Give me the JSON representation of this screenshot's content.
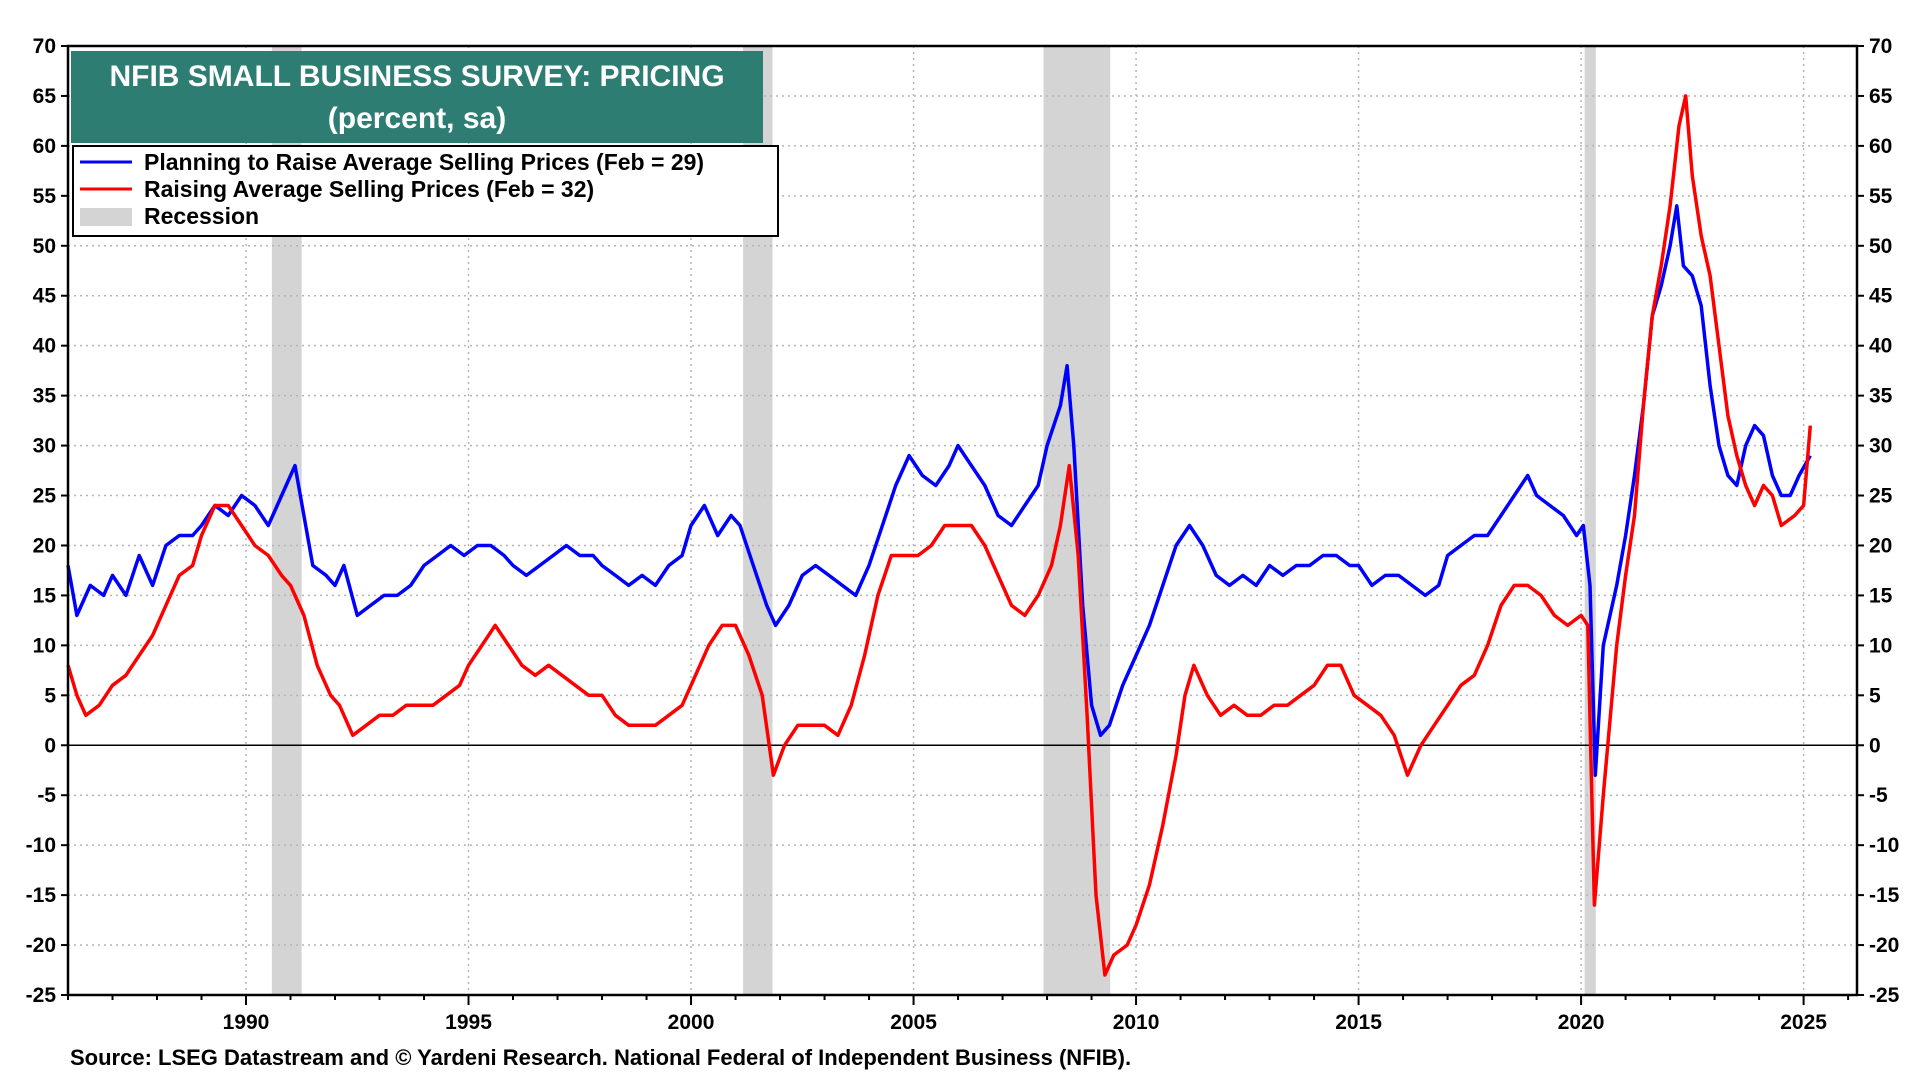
{
  "chart_data": {
    "type": "line",
    "title": "NFIB SMALL BUSINESS SURVEY: PRICING",
    "subtitle": "(percent, sa)",
    "source": "Source: LSEG Datastream and © Yardeni Research. National Federal of Independent Business (NFIB).",
    "ylim": [
      -25,
      70
    ],
    "y_ticks": [
      70,
      65,
      60,
      55,
      50,
      45,
      40,
      35,
      30,
      25,
      20,
      15,
      10,
      5,
      0,
      -5,
      -10,
      -15,
      -20,
      -25
    ],
    "xlim": [
      1986.0,
      2026.2
    ],
    "x_ticks": [
      1990,
      1995,
      2000,
      2005,
      2010,
      2015,
      2020,
      2025
    ],
    "grid": true,
    "legend_position": "top-left",
    "recession_label": "Recession",
    "recessions": [
      [
        1990.58,
        1991.25
      ],
      [
        2001.17,
        2001.83
      ],
      [
        2007.92,
        2009.42
      ],
      [
        2020.08,
        2020.33
      ]
    ],
    "series": [
      {
        "name": "Planning to Raise Average Selling Prices  (Feb = 29)",
        "color": "#0000ff",
        "points": [
          [
            1986.0,
            18
          ],
          [
            1986.2,
            13
          ],
          [
            1986.5,
            16
          ],
          [
            1986.8,
            15
          ],
          [
            1987.0,
            17
          ],
          [
            1987.3,
            15
          ],
          [
            1987.6,
            19
          ],
          [
            1987.9,
            16
          ],
          [
            1988.2,
            20
          ],
          [
            1988.5,
            21
          ],
          [
            1988.8,
            21
          ],
          [
            1989.0,
            22
          ],
          [
            1989.3,
            24
          ],
          [
            1989.6,
            23
          ],
          [
            1989.9,
            25
          ],
          [
            1990.2,
            24
          ],
          [
            1990.5,
            22
          ],
          [
            1990.7,
            24
          ],
          [
            1990.9,
            26
          ],
          [
            1991.1,
            28
          ],
          [
            1991.3,
            23
          ],
          [
            1991.5,
            18
          ],
          [
            1991.8,
            17
          ],
          [
            1992.0,
            16
          ],
          [
            1992.2,
            18
          ],
          [
            1992.5,
            13
          ],
          [
            1992.8,
            14
          ],
          [
            1993.1,
            15
          ],
          [
            1993.4,
            15
          ],
          [
            1993.7,
            16
          ],
          [
            1994.0,
            18
          ],
          [
            1994.3,
            19
          ],
          [
            1994.6,
            20
          ],
          [
            1994.9,
            19
          ],
          [
            1995.2,
            20
          ],
          [
            1995.5,
            20
          ],
          [
            1995.8,
            19
          ],
          [
            1996.0,
            18
          ],
          [
            1996.3,
            17
          ],
          [
            1996.6,
            18
          ],
          [
            1996.9,
            19
          ],
          [
            1997.2,
            20
          ],
          [
            1997.5,
            19
          ],
          [
            1997.8,
            19
          ],
          [
            1998.0,
            18
          ],
          [
            1998.3,
            17
          ],
          [
            1998.6,
            16
          ],
          [
            1998.9,
            17
          ],
          [
            1999.2,
            16
          ],
          [
            1999.5,
            18
          ],
          [
            1999.8,
            19
          ],
          [
            2000.0,
            22
          ],
          [
            2000.3,
            24
          ],
          [
            2000.6,
            21
          ],
          [
            2000.9,
            23
          ],
          [
            2001.1,
            22
          ],
          [
            2001.4,
            18
          ],
          [
            2001.7,
            14
          ],
          [
            2001.9,
            12
          ],
          [
            2002.2,
            14
          ],
          [
            2002.5,
            17
          ],
          [
            2002.8,
            18
          ],
          [
            2003.1,
            17
          ],
          [
            2003.4,
            16
          ],
          [
            2003.7,
            15
          ],
          [
            2004.0,
            18
          ],
          [
            2004.3,
            22
          ],
          [
            2004.6,
            26
          ],
          [
            2004.9,
            29
          ],
          [
            2005.2,
            27
          ],
          [
            2005.5,
            26
          ],
          [
            2005.8,
            28
          ],
          [
            2006.0,
            30
          ],
          [
            2006.3,
            28
          ],
          [
            2006.6,
            26
          ],
          [
            2006.9,
            23
          ],
          [
            2007.2,
            22
          ],
          [
            2007.5,
            24
          ],
          [
            2007.8,
            26
          ],
          [
            2008.0,
            30
          ],
          [
            2008.3,
            34
          ],
          [
            2008.45,
            38
          ],
          [
            2008.6,
            30
          ],
          [
            2008.8,
            14
          ],
          [
            2009.0,
            4
          ],
          [
            2009.2,
            1
          ],
          [
            2009.4,
            2
          ],
          [
            2009.7,
            6
          ],
          [
            2010.0,
            9
          ],
          [
            2010.3,
            12
          ],
          [
            2010.6,
            16
          ],
          [
            2010.9,
            20
          ],
          [
            2011.2,
            22
          ],
          [
            2011.5,
            20
          ],
          [
            2011.8,
            17
          ],
          [
            2012.1,
            16
          ],
          [
            2012.4,
            17
          ],
          [
            2012.7,
            16
          ],
          [
            2013.0,
            18
          ],
          [
            2013.3,
            17
          ],
          [
            2013.6,
            18
          ],
          [
            2013.9,
            18
          ],
          [
            2014.2,
            19
          ],
          [
            2014.5,
            19
          ],
          [
            2014.8,
            18
          ],
          [
            2015.0,
            18
          ],
          [
            2015.3,
            16
          ],
          [
            2015.6,
            17
          ],
          [
            2015.9,
            17
          ],
          [
            2016.2,
            16
          ],
          [
            2016.5,
            15
          ],
          [
            2016.8,
            16
          ],
          [
            2017.0,
            19
          ],
          [
            2017.3,
            20
          ],
          [
            2017.6,
            21
          ],
          [
            2017.9,
            21
          ],
          [
            2018.2,
            23
          ],
          [
            2018.5,
            25
          ],
          [
            2018.8,
            27
          ],
          [
            2019.0,
            25
          ],
          [
            2019.3,
            24
          ],
          [
            2019.6,
            23
          ],
          [
            2019.9,
            21
          ],
          [
            2020.05,
            22
          ],
          [
            2020.2,
            16
          ],
          [
            2020.32,
            -3
          ],
          [
            2020.5,
            10
          ],
          [
            2020.8,
            16
          ],
          [
            2021.0,
            21
          ],
          [
            2021.2,
            27
          ],
          [
            2021.4,
            34
          ],
          [
            2021.6,
            43
          ],
          [
            2021.8,
            46
          ],
          [
            2022.0,
            50
          ],
          [
            2022.15,
            54
          ],
          [
            2022.3,
            48
          ],
          [
            2022.5,
            47
          ],
          [
            2022.7,
            44
          ],
          [
            2022.9,
            36
          ],
          [
            2023.1,
            30
          ],
          [
            2023.3,
            27
          ],
          [
            2023.5,
            26
          ],
          [
            2023.7,
            30
          ],
          [
            2023.9,
            32
          ],
          [
            2024.1,
            31
          ],
          [
            2024.3,
            27
          ],
          [
            2024.5,
            25
          ],
          [
            2024.7,
            25
          ],
          [
            2024.9,
            27
          ],
          [
            2025.15,
            29
          ]
        ]
      },
      {
        "name": "Raising Average Selling Prices (Feb = 32)",
        "color": "#ff0000",
        "points": [
          [
            1986.0,
            8
          ],
          [
            1986.2,
            5
          ],
          [
            1986.4,
            3
          ],
          [
            1986.7,
            4
          ],
          [
            1987.0,
            6
          ],
          [
            1987.3,
            7
          ],
          [
            1987.6,
            9
          ],
          [
            1987.9,
            11
          ],
          [
            1988.2,
            14
          ],
          [
            1988.5,
            17
          ],
          [
            1988.8,
            18
          ],
          [
            1989.0,
            21
          ],
          [
            1989.3,
            24
          ],
          [
            1989.6,
            24
          ],
          [
            1989.9,
            22
          ],
          [
            1990.2,
            20
          ],
          [
            1990.5,
            19
          ],
          [
            1990.8,
            17
          ],
          [
            1991.0,
            16
          ],
          [
            1991.3,
            13
          ],
          [
            1991.6,
            8
          ],
          [
            1991.9,
            5
          ],
          [
            1992.1,
            4
          ],
          [
            1992.4,
            1
          ],
          [
            1992.7,
            2
          ],
          [
            1993.0,
            3
          ],
          [
            1993.3,
            3
          ],
          [
            1993.6,
            4
          ],
          [
            1993.9,
            4
          ],
          [
            1994.2,
            4
          ],
          [
            1994.5,
            5
          ],
          [
            1994.8,
            6
          ],
          [
            1995.0,
            8
          ],
          [
            1995.3,
            10
          ],
          [
            1995.6,
            12
          ],
          [
            1995.9,
            10
          ],
          [
            1996.2,
            8
          ],
          [
            1996.5,
            7
          ],
          [
            1996.8,
            8
          ],
          [
            1997.1,
            7
          ],
          [
            1997.4,
            6
          ],
          [
            1997.7,
            5
          ],
          [
            1998.0,
            5
          ],
          [
            1998.3,
            3
          ],
          [
            1998.6,
            2
          ],
          [
            1998.9,
            2
          ],
          [
            1999.2,
            2
          ],
          [
            1999.5,
            3
          ],
          [
            1999.8,
            4
          ],
          [
            2000.1,
            7
          ],
          [
            2000.4,
            10
          ],
          [
            2000.7,
            12
          ],
          [
            2001.0,
            12
          ],
          [
            2001.3,
            9
          ],
          [
            2001.6,
            5
          ],
          [
            2001.85,
            -3
          ],
          [
            2002.1,
            0
          ],
          [
            2002.4,
            2
          ],
          [
            2002.7,
            2
          ],
          [
            2003.0,
            2
          ],
          [
            2003.3,
            1
          ],
          [
            2003.6,
            4
          ],
          [
            2003.9,
            9
          ],
          [
            2004.2,
            15
          ],
          [
            2004.5,
            19
          ],
          [
            2004.8,
            19
          ],
          [
            2005.1,
            19
          ],
          [
            2005.4,
            20
          ],
          [
            2005.7,
            22
          ],
          [
            2006.0,
            22
          ],
          [
            2006.3,
            22
          ],
          [
            2006.6,
            20
          ],
          [
            2006.9,
            17
          ],
          [
            2007.2,
            14
          ],
          [
            2007.5,
            13
          ],
          [
            2007.8,
            15
          ],
          [
            2008.1,
            18
          ],
          [
            2008.3,
            22
          ],
          [
            2008.5,
            28
          ],
          [
            2008.7,
            19
          ],
          [
            2008.9,
            3
          ],
          [
            2009.1,
            -15
          ],
          [
            2009.3,
            -23
          ],
          [
            2009.5,
            -21
          ],
          [
            2009.8,
            -20
          ],
          [
            2010.0,
            -18
          ],
          [
            2010.3,
            -14
          ],
          [
            2010.6,
            -8
          ],
          [
            2010.9,
            -1
          ],
          [
            2011.1,
            5
          ],
          [
            2011.3,
            8
          ],
          [
            2011.6,
            5
          ],
          [
            2011.9,
            3
          ],
          [
            2012.2,
            4
          ],
          [
            2012.5,
            3
          ],
          [
            2012.8,
            3
          ],
          [
            2013.1,
            4
          ],
          [
            2013.4,
            4
          ],
          [
            2013.7,
            5
          ],
          [
            2014.0,
            6
          ],
          [
            2014.3,
            8
          ],
          [
            2014.6,
            8
          ],
          [
            2014.9,
            5
          ],
          [
            2015.2,
            4
          ],
          [
            2015.5,
            3
          ],
          [
            2015.8,
            1
          ],
          [
            2016.1,
            -3
          ],
          [
            2016.4,
            0
          ],
          [
            2016.7,
            2
          ],
          [
            2017.0,
            4
          ],
          [
            2017.3,
            6
          ],
          [
            2017.6,
            7
          ],
          [
            2017.9,
            10
          ],
          [
            2018.2,
            14
          ],
          [
            2018.5,
            16
          ],
          [
            2018.8,
            16
          ],
          [
            2019.1,
            15
          ],
          [
            2019.4,
            13
          ],
          [
            2019.7,
            12
          ],
          [
            2020.0,
            13
          ],
          [
            2020.15,
            12
          ],
          [
            2020.3,
            -16
          ],
          [
            2020.5,
            -5
          ],
          [
            2020.8,
            10
          ],
          [
            2021.0,
            17
          ],
          [
            2021.2,
            23
          ],
          [
            2021.4,
            34
          ],
          [
            2021.6,
            43
          ],
          [
            2021.8,
            48
          ],
          [
            2022.0,
            54
          ],
          [
            2022.2,
            62
          ],
          [
            2022.35,
            65
          ],
          [
            2022.5,
            57
          ],
          [
            2022.7,
            51
          ],
          [
            2022.9,
            47
          ],
          [
            2023.1,
            40
          ],
          [
            2023.3,
            33
          ],
          [
            2023.5,
            29
          ],
          [
            2023.7,
            26
          ],
          [
            2023.9,
            24
          ],
          [
            2024.1,
            26
          ],
          [
            2024.3,
            25
          ],
          [
            2024.5,
            22
          ],
          [
            2024.8,
            23
          ],
          [
            2025.0,
            24
          ],
          [
            2025.15,
            32
          ]
        ]
      }
    ]
  }
}
